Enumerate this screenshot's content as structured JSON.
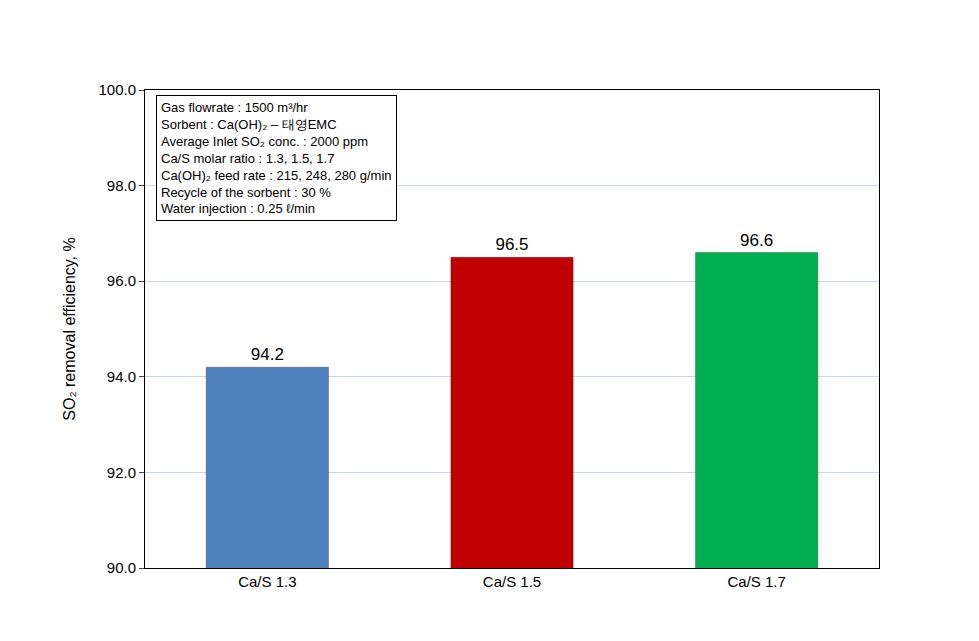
{
  "chart_data": {
    "type": "bar",
    "y_label": "SO₂ removal efficiency, %",
    "categories": [
      "Ca/S 1.3",
      "Ca/S 1.5",
      "Ca/S 1.7"
    ],
    "values": [
      94.2,
      96.5,
      96.6
    ],
    "colors": [
      "#4f81bd",
      "#c00000",
      "#00b050"
    ],
    "ylim": [
      90,
      100
    ],
    "yticks": [
      {
        "value": 90,
        "label": "90.0"
      },
      {
        "value": 92,
        "label": "92.0"
      },
      {
        "value": 94,
        "label": "94.0"
      },
      {
        "value": 96,
        "label": "96.0"
      },
      {
        "value": 98,
        "label": "98.0"
      },
      {
        "value": 100,
        "label": "100.0"
      }
    ],
    "grid": true,
    "data_labels": true,
    "annotations": [
      "Gas flowrate : 1500 m³/hr",
      "Sorbent : Ca(OH)₂ – 태영EMC",
      "Average Inlet SO₂ conc. : 2000 ppm",
      "Ca/S molar ratio : 1.3, 1.5, 1.7",
      "Ca(OH)₂ feed rate : 215, 248, 280 g/min",
      "Recycle of the sorbent : 30 %",
      "Water injection : 0.25 ℓ/min"
    ]
  }
}
